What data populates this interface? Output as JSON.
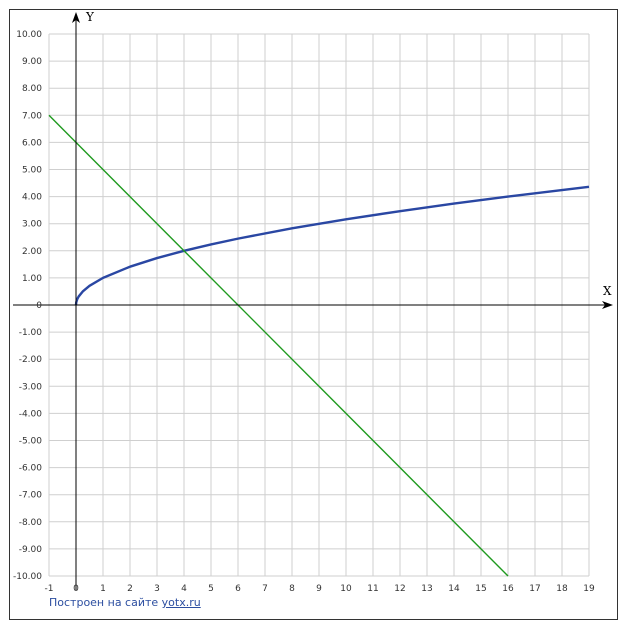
{
  "chart_data": {
    "type": "line",
    "xlabel": "X",
    "ylabel": "Y",
    "xlim": [
      -1,
      19
    ],
    "ylim": [
      -10,
      10
    ],
    "x_ticks": [
      "-1",
      "0",
      "1",
      "2",
      "3",
      "4",
      "5",
      "6",
      "7",
      "8",
      "9",
      "10",
      "11",
      "12",
      "13",
      "14",
      "15",
      "16",
      "17",
      "18",
      "19"
    ],
    "y_ticks": [
      "10.00",
      "9.00",
      "8.00",
      "7.00",
      "6.00",
      "5.00",
      "4.00",
      "3.00",
      "2.00",
      "1.00",
      "0",
      "-1.00",
      "-2.00",
      "-3.00",
      "-4.00",
      "-5.00",
      "-6.00",
      "-7.00",
      "-8.00",
      "-9.00",
      "-10.00"
    ],
    "grid": true,
    "series": [
      {
        "color": "#2a47a3",
        "x": [
          0,
          0.01,
          0.05,
          0.1,
          0.25,
          0.5,
          1,
          2,
          3,
          4,
          5,
          6,
          8,
          10,
          12,
          14,
          16,
          18,
          19
        ],
        "y": [
          0,
          0.1,
          0.224,
          0.316,
          0.5,
          0.707,
          1,
          1.414,
          1.732,
          2,
          2.236,
          2.449,
          2.828,
          3.162,
          3.464,
          3.742,
          4,
          4.243,
          4.359
        ]
      },
      {
        "color": "#1f9a1f",
        "x": [
          -1,
          16
        ],
        "y": [
          7,
          -10
        ]
      }
    ]
  },
  "credit": {
    "prefix": "Построен на сайте",
    "link": "yotx.ru"
  }
}
